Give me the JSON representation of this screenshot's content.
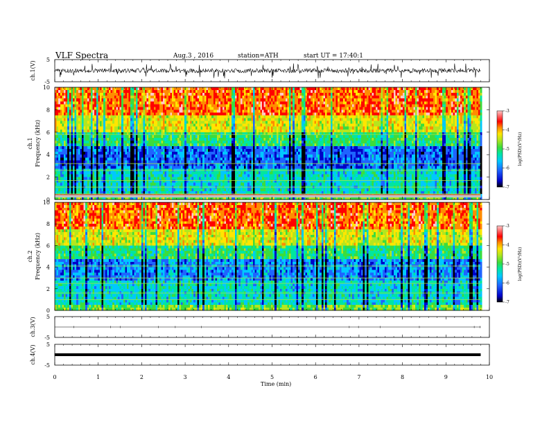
{
  "header": {
    "title": "VLF  Spectra",
    "date": "Aug.3  , 2016",
    "station": "station=ATH",
    "start": "start  UT  =    17:40:1"
  },
  "chart_data": [
    {
      "type": "line",
      "name": "ch1-waveform",
      "ylabel": "ch.1(V)",
      "ylim": [
        -5,
        5
      ],
      "yticks": [
        "5",
        "-5"
      ],
      "xlim": [
        0,
        10
      ],
      "x_extent_min": 9.8,
      "description_level": "noisy broadband signal around 0 V"
    },
    {
      "type": "heatmap",
      "name": "ch1-spectrogram",
      "ylabel": "ch.1 Frequency  (kHz)",
      "ylim": [
        0,
        10
      ],
      "yticks": [
        "0",
        "2",
        "4",
        "6",
        "8",
        "10"
      ],
      "xlim": [
        0,
        10
      ],
      "x_extent_min": 9.8,
      "colorbar": {
        "label": "log(PSD)(V²/Hz)",
        "range": [
          -7,
          -3
        ],
        "ticks": [
          "-3",
          "-4",
          "-5",
          "-6",
          "-7"
        ]
      }
    },
    {
      "type": "heatmap",
      "name": "ch2-spectrogram",
      "ylabel": "ch.2 Frequency  (kHz)",
      "ylim": [
        0,
        10
      ],
      "yticks": [
        "0",
        "2",
        "4",
        "6",
        "8",
        "10"
      ],
      "xlim": [
        0,
        10
      ],
      "x_extent_min": 9.8,
      "colorbar": {
        "label": "log(PSD)(V²/Hz)",
        "range": [
          -7,
          -3
        ],
        "ticks": [
          "-3",
          "-4",
          "-5",
          "-6",
          "-7"
        ]
      }
    },
    {
      "type": "line",
      "name": "ch3-waveform",
      "ylabel": "ch.3(V)",
      "ylim": [
        -5,
        5
      ],
      "yticks": [
        "5",
        "-5"
      ],
      "xlim": [
        0,
        10
      ],
      "x_extent_min": 9.8,
      "description_level": "flat at about 0 V"
    },
    {
      "type": "line",
      "name": "ch4-waveform",
      "ylabel": "ch.4(V)",
      "ylim": [
        -5,
        5
      ],
      "yticks": [
        "5",
        "-5"
      ],
      "xlim": [
        0,
        10
      ],
      "x_extent_min": 9.8,
      "description_level": "flat at about 0 V"
    }
  ],
  "xaxis": {
    "label": "Time  (min)",
    "ticks": [
      "0",
      "1",
      "2",
      "3",
      "4",
      "5",
      "6",
      "7",
      "8",
      "9",
      "10"
    ]
  },
  "colors": {
    "scale": [
      "#000000",
      "#0000c8",
      "#1e64ff",
      "#00c8ff",
      "#00e6a0",
      "#3cdc3c",
      "#b4e61e",
      "#ffe600",
      "#ff8c00",
      "#ff0000",
      "#ffc8c8"
    ]
  }
}
